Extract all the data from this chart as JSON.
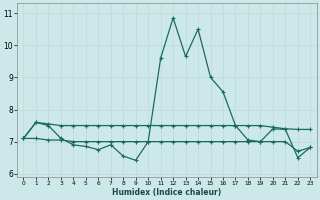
{
  "xlabel": "Humidex (Indice chaleur)",
  "bg_color": "#cce8e8",
  "grid_color": "#b0d4d4",
  "line_color": "#1a6b5e",
  "xlim": [
    -0.5,
    23.5
  ],
  "ylim": [
    5.9,
    11.3
  ],
  "yticks": [
    6,
    7,
    8,
    9,
    10,
    11
  ],
  "ytick_labels": [
    "6",
    "7",
    "8",
    "9",
    "10",
    "11"
  ],
  "xticks": [
    0,
    1,
    2,
    3,
    4,
    5,
    6,
    7,
    8,
    9,
    10,
    11,
    12,
    13,
    14,
    15,
    16,
    17,
    18,
    19,
    20,
    21,
    22,
    23
  ],
  "s1_x": [
    0,
    1,
    2,
    3,
    4,
    5,
    6,
    7,
    8,
    9,
    10,
    11,
    12,
    13,
    14,
    15,
    16,
    17,
    18,
    19,
    20,
    21,
    22,
    23
  ],
  "s1_y": [
    7.1,
    7.6,
    7.55,
    7.5,
    7.5,
    7.5,
    7.5,
    7.5,
    7.5,
    7.5,
    7.5,
    7.5,
    7.5,
    7.5,
    7.5,
    7.5,
    7.5,
    7.5,
    7.5,
    7.5,
    7.45,
    7.4,
    7.38,
    7.38
  ],
  "s2_x": [
    0,
    1,
    2,
    3,
    4,
    5,
    6,
    7,
    8,
    9,
    10,
    11,
    12,
    13,
    14,
    15,
    16,
    17,
    18,
    19,
    20,
    21,
    22,
    23
  ],
  "s2_y": [
    7.1,
    7.6,
    7.5,
    7.1,
    6.9,
    6.85,
    6.75,
    6.9,
    6.55,
    6.42,
    7.0,
    9.6,
    10.85,
    9.65,
    10.5,
    9.0,
    8.55,
    7.5,
    7.05,
    7.0,
    7.4,
    7.38,
    6.5,
    6.82
  ],
  "s3_x": [
    0,
    1,
    2,
    3,
    4,
    5,
    6,
    7,
    8,
    9,
    10,
    11,
    12,
    13,
    14,
    15,
    16,
    17,
    18,
    19,
    20,
    21,
    22,
    23
  ],
  "s3_y": [
    7.1,
    7.1,
    7.05,
    7.05,
    7.0,
    7.0,
    7.0,
    7.0,
    7.0,
    7.0,
    7.0,
    7.0,
    7.0,
    7.0,
    7.0,
    7.0,
    7.0,
    7.0,
    7.0,
    7.0,
    7.0,
    7.0,
    6.7,
    6.82
  ]
}
